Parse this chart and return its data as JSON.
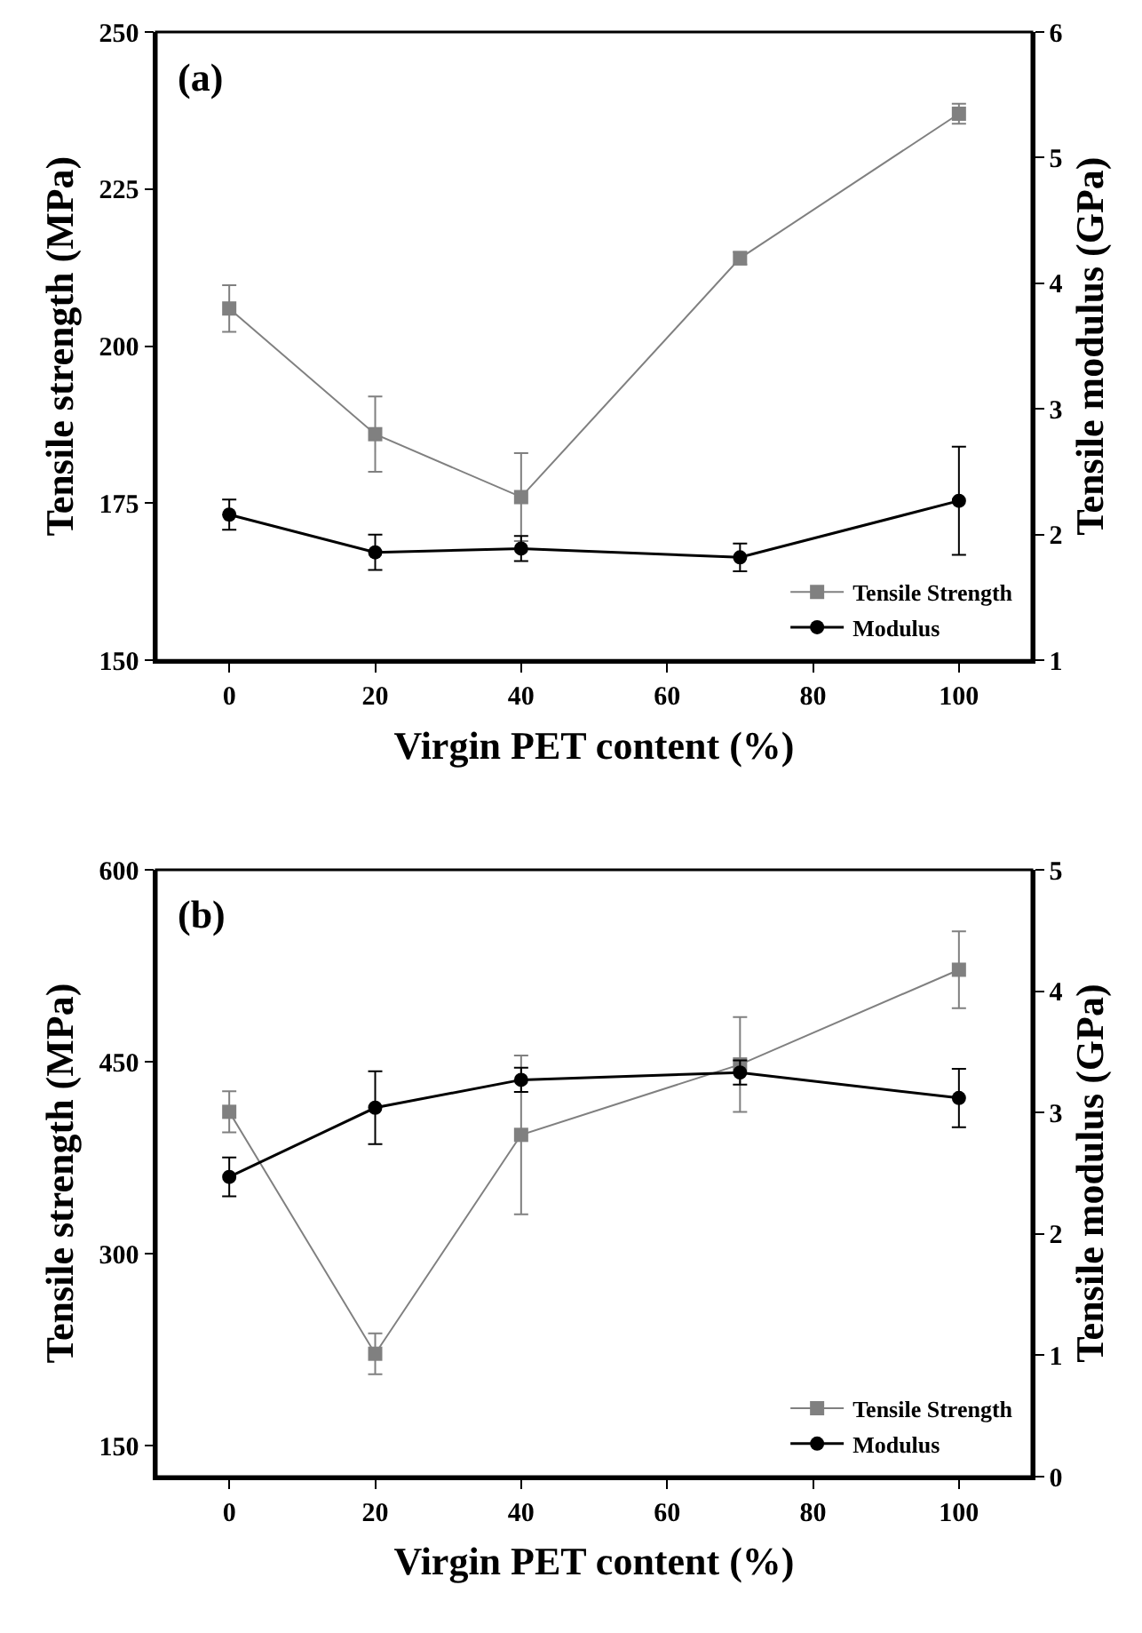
{
  "chart_data": [
    {
      "type": "line",
      "xlabel": "Virgin PET content (%)",
      "ylabel": "Tensile strength (MPa)",
      "y2label": "Tensile modulus (GPa)",
      "annotations": [
        "(a)"
      ],
      "x": [
        0,
        20,
        40,
        70,
        100
      ],
      "xlim": [
        -10,
        110
      ],
      "xticks": [
        0,
        20,
        40,
        60,
        80,
        100
      ],
      "ylim": [
        150,
        250
      ],
      "yticks": [
        150,
        175,
        200,
        225,
        250
      ],
      "y2lim": [
        1,
        6
      ],
      "y2ticks": [
        1,
        2,
        3,
        4,
        5,
        6
      ],
      "legend": "bottom right",
      "series": [
        {
          "name": "Tensile Strength",
          "color": "#808080",
          "marker": "square",
          "values": [
            206,
            186,
            176,
            214,
            237
          ],
          "errors": [
            3.7,
            6,
            7,
            1,
            1.6
          ]
        },
        {
          "name": "Modulus",
          "color": "#000000",
          "marker": "circle",
          "axis": "y2",
          "values": [
            2.16,
            1.86,
            1.89,
            1.82,
            2.27
          ],
          "errors": [
            0.12,
            0.14,
            0.1,
            0.11,
            0.43
          ]
        }
      ]
    },
    {
      "type": "line",
      "xlabel": "Virgin PET content (%)",
      "ylabel": "Tensile strength (MPa)",
      "y2label": "Tensile modulus (GPa)",
      "annotations": [
        "(b)"
      ],
      "x": [
        0,
        20,
        40,
        70,
        100
      ],
      "xlim": [
        -10,
        110
      ],
      "xticks": [
        0,
        20,
        40,
        60,
        80,
        100
      ],
      "ylim": [
        126,
        600
      ],
      "yticks": [
        150,
        300,
        450,
        600
      ],
      "y2lim": [
        0,
        5
      ],
      "y2ticks": [
        0,
        1,
        2,
        3,
        4,
        5
      ],
      "legend": "bottom right",
      "series": [
        {
          "name": "Tensile Strength",
          "color": "#808080",
          "marker": "square",
          "values": [
            411,
            222,
            393,
            448,
            522
          ],
          "errors": [
            16,
            16,
            62,
            37,
            30
          ]
        },
        {
          "name": "Modulus",
          "color": "#000000",
          "marker": "circle",
          "axis": "y2",
          "values": [
            2.47,
            3.04,
            3.27,
            3.33,
            3.12
          ],
          "errors": [
            0.16,
            0.3,
            0.1,
            0.1,
            0.24
          ]
        }
      ]
    }
  ]
}
